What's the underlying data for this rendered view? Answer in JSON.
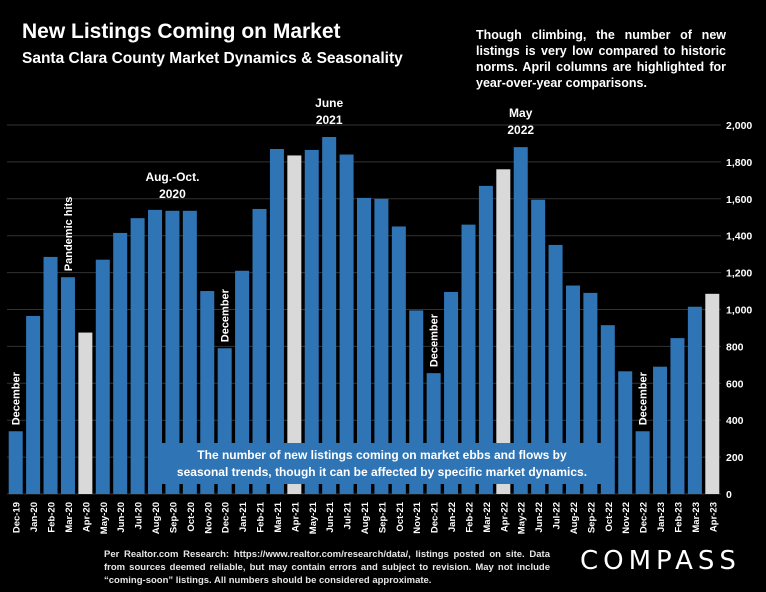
{
  "header": {
    "title": "New Listings Coming on Market",
    "subtitle": "Santa Clara County Market Dynamics & Seasonality"
  },
  "note": "Though climbing, the number of new listings is very low compared to historic norms. April columns are highlighted for year-over-year comparisons.",
  "footer": "Per Realtor.com Research: https://www.realtor.com/research/data/, listings posted on site. Data from sources deemed reliable, but may contain errors and subject to revision. May not include “coming-soon” listings. All numbers should be considered approximate.",
  "logo": "COMPASS",
  "chart_data": {
    "type": "bar",
    "categories": [
      "Dec-19",
      "Jan-20",
      "Feb-20",
      "Mar-20",
      "Apr-20",
      "May-20",
      "Jun-20",
      "Jul-20",
      "Aug-20",
      "Sep-20",
      "Oct-20",
      "Nov-20",
      "Dec-20",
      "Jan-21",
      "Feb-21",
      "Mar-21",
      "Apr-21",
      "May-21",
      "Jun-21",
      "Jul-21",
      "Aug-21",
      "Sep-21",
      "Oct-21",
      "Nov-21",
      "Dec-21",
      "Jan-22",
      "Feb-22",
      "Mar-22",
      "Apr-22",
      "May-22",
      "Jun-22",
      "Jul-22",
      "Aug-22",
      "Sep-22",
      "Oct-22",
      "Nov-22",
      "Dec-22",
      "Jan-23",
      "Feb-23",
      "Mar-23",
      "Apr-23"
    ],
    "values": [
      340,
      965,
      1285,
      1175,
      875,
      1270,
      1415,
      1495,
      1540,
      1535,
      1535,
      1100,
      790,
      1210,
      1545,
      1870,
      1835,
      1865,
      1935,
      1840,
      1605,
      1600,
      1450,
      995,
      655,
      1095,
      1460,
      1670,
      1760,
      1880,
      1595,
      1350,
      1130,
      1090,
      915,
      665,
      340,
      690,
      845,
      1015,
      1085
    ],
    "highlight_categories": [
      "Apr-20",
      "Apr-21",
      "Apr-22",
      "Apr-23"
    ],
    "colors": {
      "bar": "#2f75b5",
      "highlight": "#d9d9d9",
      "grid": "#333333"
    },
    "ylim": [
      0,
      2000
    ],
    "yticks": [
      "0",
      "200",
      "400",
      "600",
      "800",
      "1,000",
      "1,200",
      "1,400",
      "1,600",
      "1,800",
      "2,000"
    ],
    "y_axis_side": "right",
    "grid": true,
    "annotations": [
      {
        "category": "Dec-19",
        "text": "December",
        "orientation": "vertical"
      },
      {
        "category": "Mar-20",
        "text": "Pandemic hits",
        "orientation": "vertical"
      },
      {
        "category": "Sep-20",
        "lines": [
          "Aug.-Oct.",
          "2020"
        ],
        "orientation": "horizontal"
      },
      {
        "category": "Dec-20",
        "text": "December",
        "orientation": "vertical"
      },
      {
        "category": "Jun-21",
        "lines": [
          "June",
          "2021"
        ],
        "orientation": "horizontal"
      },
      {
        "category": "Dec-21",
        "text": "December",
        "orientation": "vertical"
      },
      {
        "category": "May-22",
        "lines": [
          "May",
          "2022"
        ],
        "orientation": "horizontal"
      },
      {
        "category": "Dec-22",
        "text": "December",
        "orientation": "vertical"
      }
    ],
    "callout": "The number of new listings coming on market ebbs and flows by seasonal trends, though it can be affected by specific market dynamics."
  }
}
